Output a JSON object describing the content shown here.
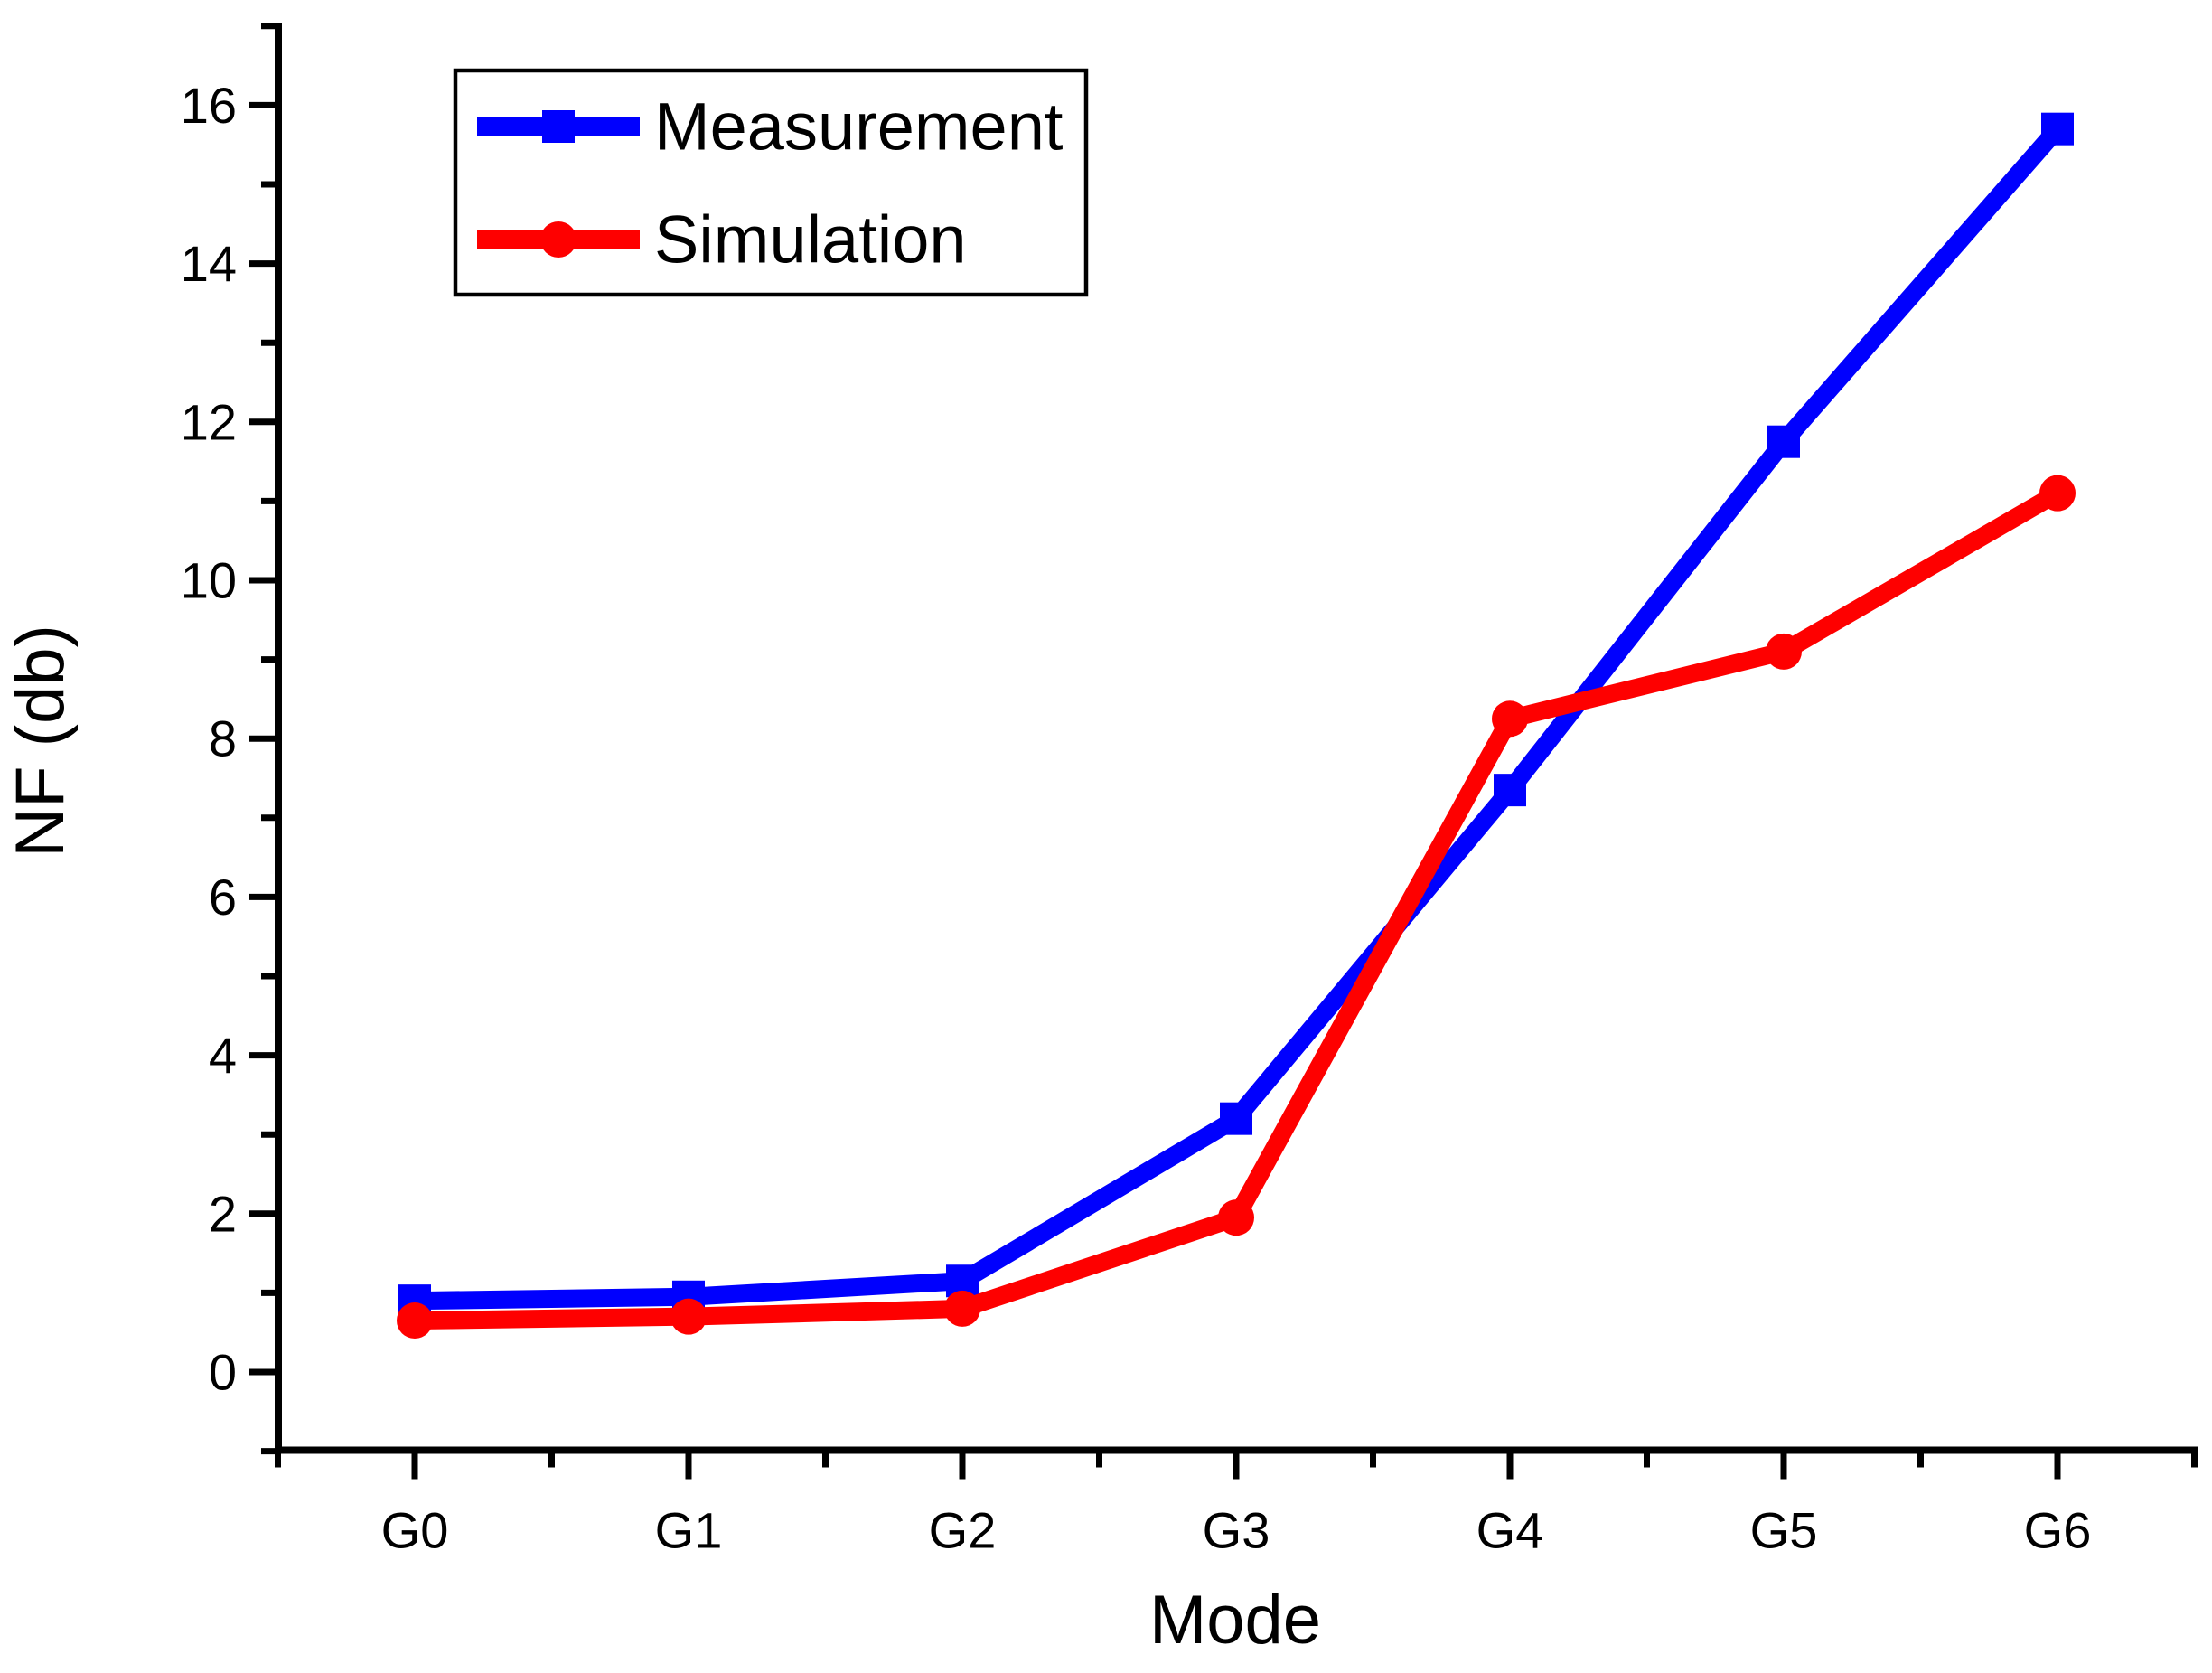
{
  "chart_data": {
    "type": "line",
    "title": "",
    "xlabel": "Mode",
    "ylabel": "NF (db)",
    "categories": [
      "G0",
      "G1",
      "G2",
      "G3",
      "G4",
      "G5",
      "G6"
    ],
    "series": [
      {
        "name": "Measurement",
        "color": "#0000FE",
        "marker": "square",
        "values": [
          0.9,
          0.95,
          1.15,
          3.2,
          7.35,
          11.75,
          15.7
        ]
      },
      {
        "name": "Simulation",
        "color": "#FE0000",
        "marker": "circle",
        "values": [
          0.65,
          0.7,
          0.8,
          1.95,
          8.25,
          9.1,
          11.1
        ]
      }
    ],
    "ylim": [
      -1,
      17.1
    ],
    "yticks": [
      0,
      2,
      4,
      6,
      8,
      10,
      12,
      14,
      16
    ],
    "grid": false,
    "legend_position": "top-left",
    "axis_color": "#000000",
    "background_color": "#ffffff"
  }
}
